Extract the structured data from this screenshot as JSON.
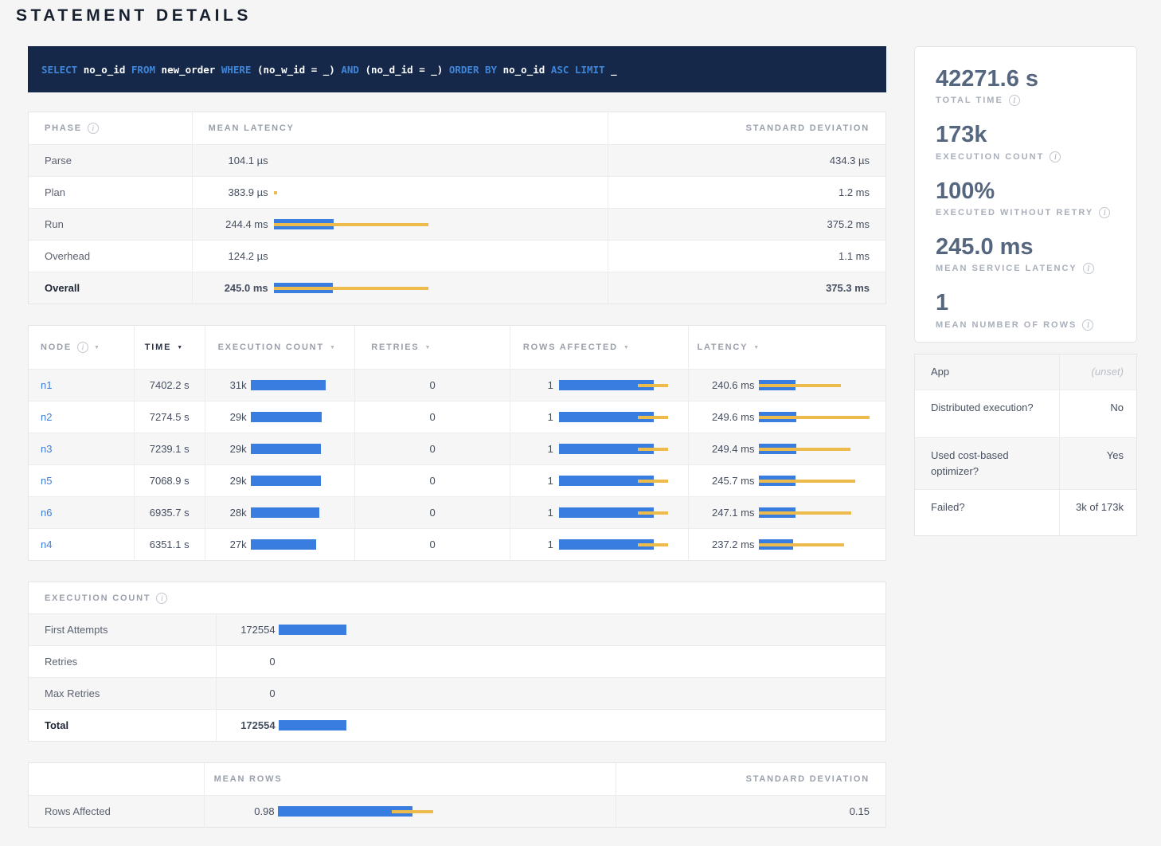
{
  "page": {
    "title": "STATEMENT DETAILS"
  },
  "sql": {
    "tokens": [
      {
        "type": "kw",
        "text": "SELECT"
      },
      {
        "type": "id",
        "text": "no_o_id"
      },
      {
        "type": "kw",
        "text": "FROM"
      },
      {
        "type": "id",
        "text": "new_order"
      },
      {
        "type": "kw",
        "text": "WHERE"
      },
      {
        "type": "id",
        "text": "(no_w_id = _)"
      },
      {
        "type": "kw",
        "text": "AND"
      },
      {
        "type": "id",
        "text": "(no_d_id = _)"
      },
      {
        "type": "kw",
        "text": "ORDER BY"
      },
      {
        "type": "id",
        "text": "no_o_id"
      },
      {
        "type": "kw",
        "text": "ASC"
      },
      {
        "type": "kw",
        "text": "LIMIT"
      },
      {
        "type": "id",
        "text": "_"
      }
    ]
  },
  "phase_table": {
    "headers": {
      "phase": "Phase",
      "mean": "Mean Latency",
      "std": "Standard Deviation"
    },
    "rows": [
      {
        "label": "Parse",
        "mean": "104.1 µs",
        "std": "434.3 µs",
        "bar": null
      },
      {
        "label": "Plan",
        "mean": "383.9 µs",
        "std": "1.2 ms",
        "bar": {
          "dev": [
            0,
            0.01
          ]
        }
      },
      {
        "label": "Run",
        "mean": "244.4 ms",
        "std": "375.2 ms",
        "bar": {
          "mean": 0.183,
          "dev": [
            0,
            0.472
          ]
        }
      },
      {
        "label": "Overhead",
        "mean": "124.2 µs",
        "std": "1.1 ms",
        "bar": null
      },
      {
        "label": "Overall",
        "mean": "245.0 ms",
        "std": "375.3 ms",
        "bar": {
          "mean": 0.181,
          "dev": [
            0,
            0.472
          ]
        }
      }
    ]
  },
  "node_table": {
    "headers": {
      "node": "Node",
      "time": "Time",
      "exec": "Execution Count",
      "retries": "Retries",
      "rows": "Rows Affected",
      "latency": "Latency"
    },
    "sort_caret": "▼",
    "rows": [
      {
        "node": "n1",
        "time": "7402.2 s",
        "exec": "31k",
        "exec_bar": {
          "mean": 0.81
        },
        "retries": "0",
        "rows": "1",
        "rows_bar": {
          "mean": 0.79,
          "dev": [
            0.655,
            0.91
          ]
        },
        "latency": "240.6 ms",
        "lat_bar": {
          "mean": 0.3,
          "dev": [
            0,
            0.68
          ]
        }
      },
      {
        "node": "n2",
        "time": "7274.5 s",
        "exec": "29k",
        "exec_bar": {
          "mean": 0.765
        },
        "retries": "0",
        "rows": "1",
        "rows_bar": {
          "mean": 0.79,
          "dev": [
            0.655,
            0.91
          ]
        },
        "latency": "249.6 ms",
        "lat_bar": {
          "mean": 0.31,
          "dev": [
            0,
            0.92
          ]
        }
      },
      {
        "node": "n3",
        "time": "7239.1 s",
        "exec": "29k",
        "exec_bar": {
          "mean": 0.762
        },
        "retries": "0",
        "rows": "1",
        "rows_bar": {
          "mean": 0.79,
          "dev": [
            0.655,
            0.91
          ]
        },
        "latency": "249.4 ms",
        "lat_bar": {
          "mean": 0.31,
          "dev": [
            0,
            0.76
          ]
        }
      },
      {
        "node": "n5",
        "time": "7068.9 s",
        "exec": "29k",
        "exec_bar": {
          "mean": 0.755
        },
        "retries": "0",
        "rows": "1",
        "rows_bar": {
          "mean": 0.79,
          "dev": [
            0.655,
            0.91
          ]
        },
        "latency": "245.7 ms",
        "lat_bar": {
          "mean": 0.305,
          "dev": [
            0,
            0.8
          ]
        }
      },
      {
        "node": "n6",
        "time": "6935.7 s",
        "exec": "28k",
        "exec_bar": {
          "mean": 0.737
        },
        "retries": "0",
        "rows": "1",
        "rows_bar": {
          "mean": 0.79,
          "dev": [
            0.655,
            0.91
          ]
        },
        "latency": "247.1 ms",
        "lat_bar": {
          "mean": 0.305,
          "dev": [
            0,
            0.77
          ]
        }
      },
      {
        "node": "n4",
        "time": "6351.1 s",
        "exec": "27k",
        "exec_bar": {
          "mean": 0.703
        },
        "retries": "0",
        "rows": "1",
        "rows_bar": {
          "mean": 0.79,
          "dev": [
            0.655,
            0.91
          ]
        },
        "latency": "237.2 ms",
        "lat_bar": {
          "mean": 0.285,
          "dev": [
            0,
            0.71
          ]
        }
      }
    ]
  },
  "exec_table": {
    "title": "Execution Count",
    "rows": [
      {
        "label": "First Attempts",
        "value": "172554",
        "bar": {
          "mean": 0.197
        }
      },
      {
        "label": "Retries",
        "value": "0",
        "bar": null
      },
      {
        "label": "Max Retries",
        "value": "0",
        "bar": null
      },
      {
        "label": "Total",
        "value": "172554",
        "bar": {
          "mean": 0.197
        }
      }
    ]
  },
  "rows_table": {
    "headers": {
      "mean": "Mean Rows",
      "std": "Standard Deviation"
    },
    "row": {
      "label": "Rows Affected",
      "mean": "0.98",
      "std": "0.15",
      "bar": {
        "mean": 0.405,
        "dev": [
          0.344,
          0.468
        ]
      }
    }
  },
  "summary_stats": [
    {
      "value": "42271.6 s",
      "label": "Total Time"
    },
    {
      "value": "173k",
      "label": "Execution Count"
    },
    {
      "value": "100%",
      "label": "Executed without Retry"
    },
    {
      "value": "245.0 ms",
      "label": "Mean Service Latency"
    },
    {
      "value": "1",
      "label": "Mean Number of Rows"
    }
  ],
  "properties": {
    "rows": [
      {
        "label": "App",
        "value": "(unset)"
      },
      {
        "label": "Distributed execution?",
        "value": "No"
      },
      {
        "label": "Used cost-based optimizer?",
        "value": "Yes"
      },
      {
        "label": "Failed?",
        "value": "3k of 173k"
      }
    ]
  },
  "colors": {
    "bar_blue": "#3a7de1",
    "bar_yellow": "#edbb4b",
    "sql_bg": "#152849",
    "link_blue": "#3e7edb"
  }
}
